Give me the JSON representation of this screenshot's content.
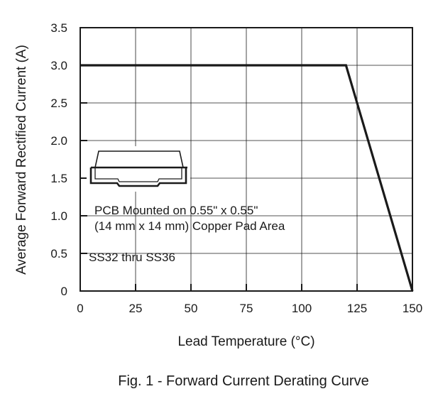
{
  "chart_data": {
    "type": "line",
    "title": "",
    "caption": "Fig. 1 - Forward Current Derating Curve",
    "xlabel": "Lead Temperature (°C)",
    "ylabel": "Average Forward Rectified Current (A)",
    "xlim": [
      0,
      150
    ],
    "ylim": [
      0,
      3.5
    ],
    "xticks": [
      0,
      25,
      50,
      75,
      100,
      125,
      150
    ],
    "yticks": [
      0,
      0.5,
      1.0,
      1.5,
      2.0,
      2.5,
      3.0,
      3.5
    ],
    "xtick_labels": [
      "0",
      "25",
      "50",
      "75",
      "100",
      "125",
      "150"
    ],
    "ytick_labels": [
      "0",
      "0.5",
      "1.0",
      "1.5",
      "2.0",
      "2.5",
      "3.0",
      "3.5"
    ],
    "grid": true,
    "series": [
      {
        "x": [
          0,
          120,
          150
        ],
        "y": [
          3.0,
          3.0,
          0
        ]
      }
    ],
    "annotations": {
      "mount_line1": "PCB Mounted on 0.55\" x 0.55\"",
      "mount_line2": "(14 mm x 14 mm) Copper Pad Area",
      "part": "SS32 thru SS36"
    },
    "colors": {
      "line": "#1a1a1a",
      "grid": "#1a1a1a",
      "background": "#ffffff"
    }
  }
}
